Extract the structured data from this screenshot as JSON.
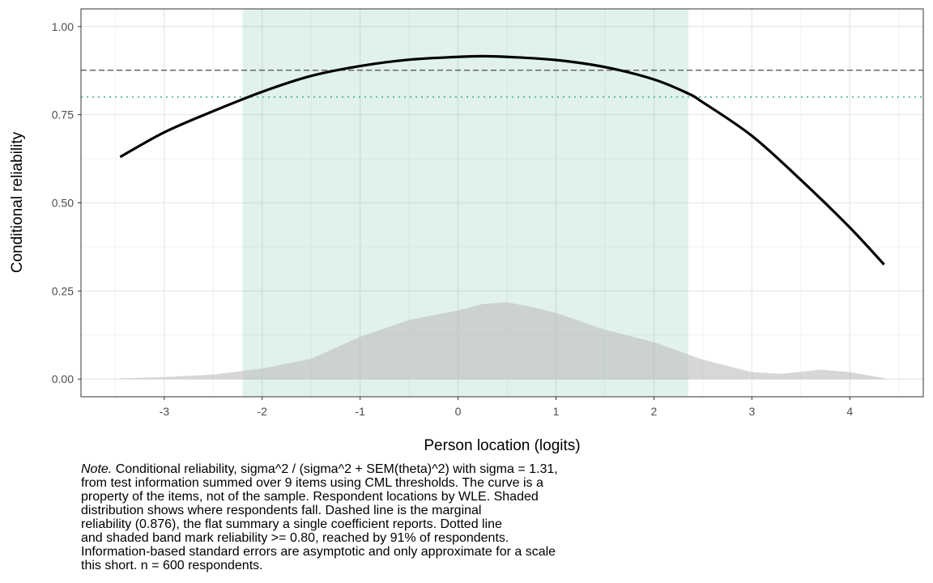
{
  "chart_data": {
    "type": "line",
    "title": "",
    "xlabel": "Person location (logits)",
    "ylabel": "Conditional reliability",
    "xlim": [
      -3.85,
      4.75
    ],
    "ylim": [
      -0.05,
      1.05
    ],
    "x_ticks": [
      -3,
      -2,
      -1,
      0,
      1,
      2,
      3,
      4
    ],
    "x_tick_labels": [
      "-3",
      "-2",
      "-1",
      "0",
      "1",
      "2",
      "3",
      "4"
    ],
    "y_ticks": [
      0,
      0.25,
      0.5,
      0.75,
      1
    ],
    "y_tick_labels": [
      "0.00",
      "0.25",
      "0.50",
      "0.75",
      "1.00"
    ],
    "grid": true,
    "series": [
      {
        "kind": "line",
        "color": "#000000",
        "x": [
          -3.45,
          -3.0,
          -2.5,
          -2.0,
          -1.5,
          -1.0,
          -0.5,
          0.0,
          0.25,
          0.5,
          1.0,
          1.5,
          2.0,
          2.35,
          2.5,
          3.0,
          3.5,
          4.0,
          4.35
        ],
        "y": [
          0.63,
          0.7,
          0.76,
          0.815,
          0.86,
          0.888,
          0.906,
          0.914,
          0.916,
          0.914,
          0.905,
          0.885,
          0.85,
          0.81,
          0.785,
          0.69,
          0.565,
          0.43,
          0.325
        ]
      },
      {
        "kind": "density-area",
        "color": "#bdbdbd",
        "x": [
          -3.45,
          -3.0,
          -2.5,
          -2.0,
          -1.5,
          -1.0,
          -0.5,
          0.0,
          0.25,
          0.5,
          0.75,
          1.0,
          1.5,
          2.0,
          2.5,
          3.0,
          3.3,
          3.7,
          4.0,
          4.35
        ],
        "y": [
          0.002,
          0.006,
          0.013,
          0.03,
          0.058,
          0.12,
          0.168,
          0.195,
          0.213,
          0.218,
          0.205,
          0.188,
          0.14,
          0.105,
          0.055,
          0.02,
          0.015,
          0.027,
          0.02,
          0.003
        ]
      }
    ],
    "reference_lines": [
      {
        "axis": "y",
        "value": 0.876,
        "style": "dashed",
        "color": "#4d4d4d"
      },
      {
        "axis": "y",
        "value": 0.8,
        "style": "dotted",
        "color": "#1b9e77"
      }
    ],
    "band": {
      "axis": "x",
      "from": -2.2,
      "to": 2.35,
      "color": "#1b9e77",
      "opacity": 0.13
    }
  },
  "note": {
    "label": "Note.",
    "text": " Conditional reliability, sigma^2 / (sigma^2 + SEM(theta)^2) with sigma = 1.31,\nfrom test information summed over 9 items using CML thresholds. The curve is a\nproperty of the items, not of the sample. Respondent locations by WLE. Shaded\ndistribution shows where respondents fall. Dashed line is the marginal\nreliability (0.876), the flat summary a single coefficient reports. Dotted line\nand shaded band mark reliability >= 0.80, reached by 91% of respondents.\nInformation-based standard errors are asymptotic and only approximate for a scale\nthis short. n = 600 respondents."
  }
}
